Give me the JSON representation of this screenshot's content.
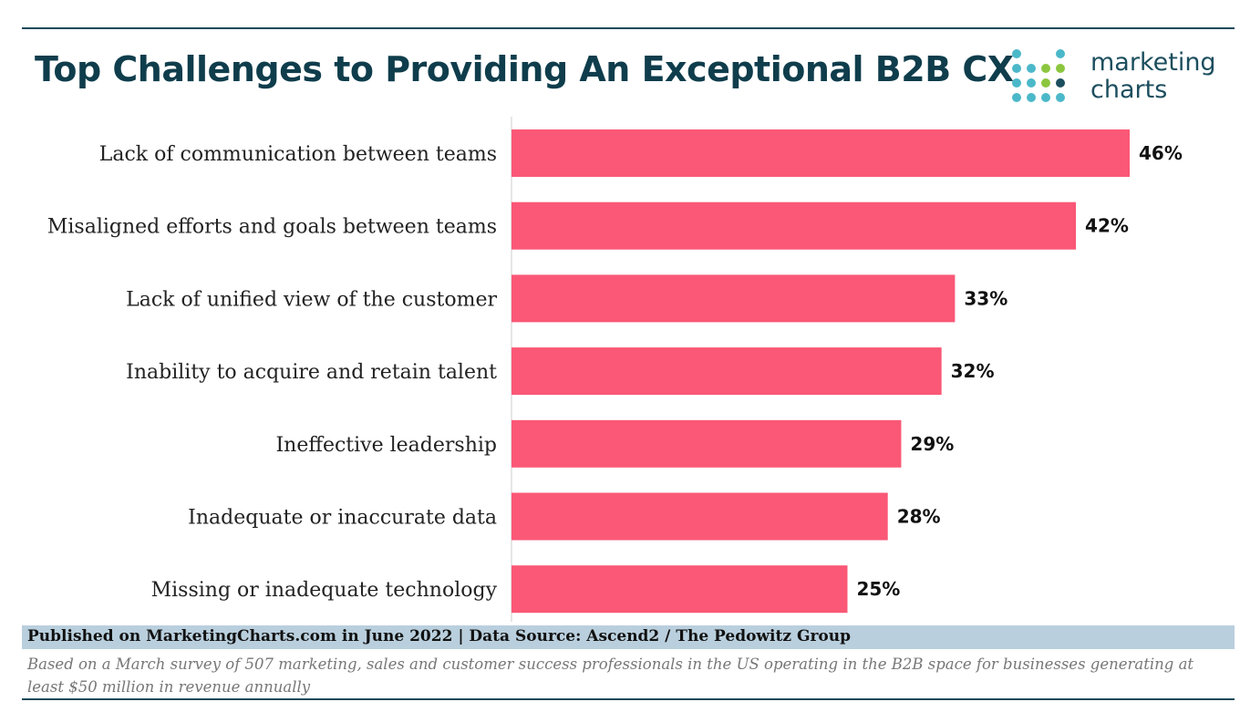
{
  "header": {
    "title": "Top Challenges to Providing An Exceptional B2B CX"
  },
  "logo": {
    "line1": "marketing",
    "line2": "charts",
    "dot_colors": [
      "#4bb8c9",
      "#8cc63f",
      "#1c4e5e"
    ]
  },
  "chart_data": {
    "type": "bar",
    "orientation": "horizontal",
    "categories": [
      "Lack of communication between teams",
      "Misaligned efforts and goals between teams",
      "Lack of unified view of the customer",
      "Inability to acquire and retain talent",
      "Ineffective leadership",
      "Inadequate or inaccurate data",
      "Missing or inadequate technology"
    ],
    "values": [
      46,
      42,
      33,
      32,
      29,
      28,
      25
    ],
    "value_labels": [
      "46%",
      "42%",
      "33%",
      "32%",
      "29%",
      "28%",
      "25%"
    ],
    "title": "Top Challenges to Providing An Exceptional B2B CX",
    "xlabel": "",
    "ylabel": "",
    "xlim": [
      0,
      46
    ],
    "grid": false,
    "bar_color": "#fa5876"
  },
  "footer": {
    "published": "Published on MarketingCharts.com in June 2022 | Data Source: Ascend2 / The Pedowitz Group",
    "note": "Based on a March survey of 507 marketing, sales and customer success professionals in the US operating in the B2B space for businesses generating at least $50 million in revenue annually"
  }
}
